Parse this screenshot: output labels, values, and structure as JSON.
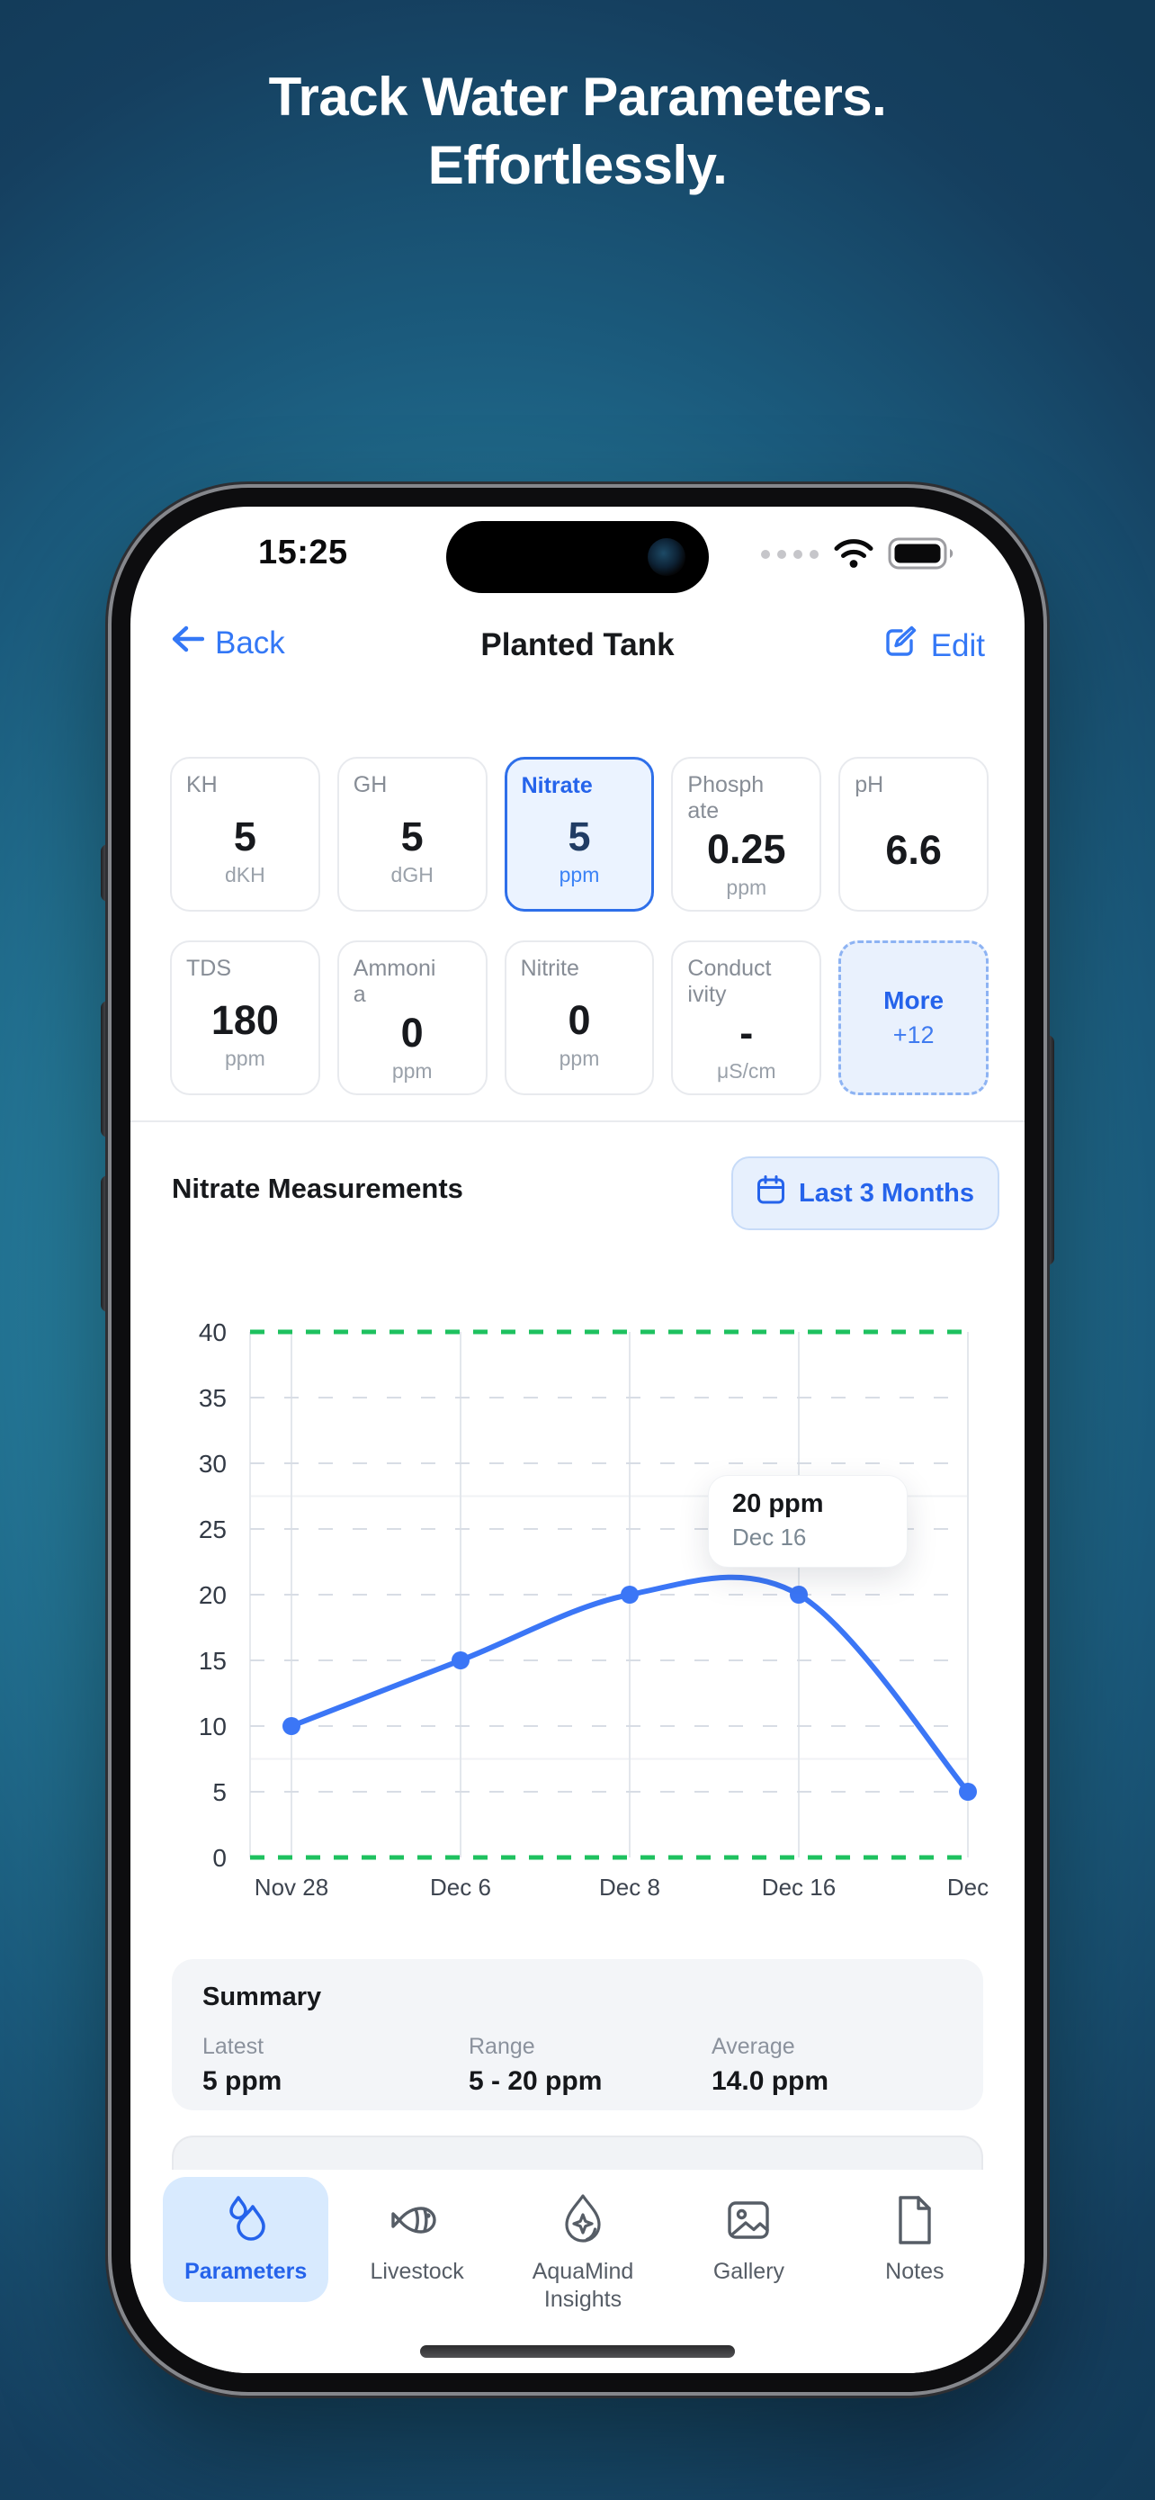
{
  "hero": {
    "title_line1": "Track Water Parameters.",
    "title_line2": "Effortlessly."
  },
  "status_bar": {
    "time": "15:25",
    "icons": [
      "cellular-dots-icon",
      "wifi-icon",
      "battery-icon"
    ]
  },
  "nav": {
    "back_label": "Back",
    "title": "Planted Tank",
    "edit_label": "Edit"
  },
  "parameters": {
    "cards": [
      {
        "label": "KH",
        "value": "5",
        "unit": "dKH",
        "state": "normal"
      },
      {
        "label": "GH",
        "value": "5",
        "unit": "dGH",
        "state": "normal"
      },
      {
        "label": "Nitrate",
        "value": "5",
        "unit": "ppm",
        "state": "selected"
      },
      {
        "label": "Phosphate",
        "value": "0.25",
        "unit": "ppm",
        "state": "normal"
      },
      {
        "label": "pH",
        "value": "6.6",
        "unit": "",
        "state": "normal"
      },
      {
        "label": "TDS",
        "value": "180",
        "unit": "ppm",
        "state": "normal"
      },
      {
        "label": "Ammonia",
        "value": "0",
        "unit": "ppm",
        "state": "normal"
      },
      {
        "label": "Nitrite",
        "value": "0",
        "unit": "ppm",
        "state": "normal"
      },
      {
        "label": "Conductivity",
        "value": "-",
        "unit": "μS/cm",
        "state": "normal"
      },
      {
        "label": "More",
        "value": "+12",
        "unit": "",
        "state": "more"
      }
    ]
  },
  "chart_section": {
    "title": "Nitrate Measurements",
    "range_button": "Last 3 Months",
    "range_button_icon": "calendar-icon"
  },
  "chart_data": {
    "type": "line",
    "title": "Nitrate Measurements",
    "x": [
      "Nov 28",
      "Dec 6",
      "Dec 8",
      "Dec 16",
      "Dec"
    ],
    "series": [
      {
        "name": "Nitrate (ppm)",
        "values": [
          10,
          15,
          20,
          20,
          5
        ]
      }
    ],
    "ylim": [
      0,
      40
    ],
    "ytick_step": 5,
    "safe_range": {
      "min": 0,
      "max": 40,
      "color": "#1ec15f"
    },
    "line_color": "#3b76f6",
    "grid": true,
    "tooltip": {
      "value": "20 ppm",
      "date": "Dec 16",
      "point_index": 3
    }
  },
  "summary": {
    "title": "Summary",
    "items": [
      {
        "label": "Latest",
        "value": "5 ppm"
      },
      {
        "label": "Range",
        "value": "5 - 20 ppm"
      },
      {
        "label": "Average",
        "value": "14.0 ppm"
      }
    ]
  },
  "tab_bar": {
    "items": [
      {
        "label": "Parameters",
        "icon": "droplets-icon",
        "active": true
      },
      {
        "label": "Livestock",
        "icon": "fish-icon",
        "active": false
      },
      {
        "label": "AquaMind Insights",
        "icon": "drop-sparkle-icon",
        "active": false
      },
      {
        "label": "Gallery",
        "icon": "gallery-icon",
        "active": false
      },
      {
        "label": "Notes",
        "icon": "notes-icon",
        "active": false
      }
    ]
  },
  "colors": {
    "accent_blue": "#2563eb",
    "ios_blue": "#3478f6",
    "safe_green": "#1ec15f",
    "chart_line": "#3b76f6",
    "background_teal": "#2f9cbd",
    "background_navy": "#123a57"
  }
}
